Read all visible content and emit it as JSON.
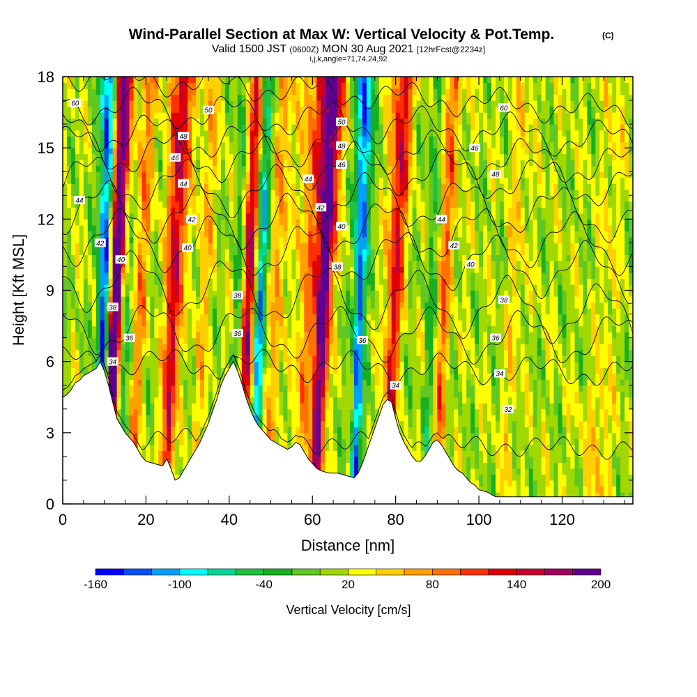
{
  "chart_data": {
    "type": "heatmap",
    "title": "Wind-Parallel Section at Max W: Vertical Velocity & Pot.Temp.",
    "title_mark": "(C)",
    "subtitle_parts": [
      "Valid 1500 JST ",
      "(0600Z)",
      " MON 30 Aug 2021 ",
      "[12hrFcst@2234z]"
    ],
    "subtitle2": "i,j,k,angle=71,74,24,92",
    "xlabel": "Distance [nm]",
    "ylabel": "Height [Kft MSL]",
    "xlim": [
      0,
      137
    ],
    "ylim": [
      0,
      18
    ],
    "x_ticks": [
      0,
      20,
      40,
      60,
      80,
      100,
      120
    ],
    "y_ticks": [
      0,
      3,
      6,
      9,
      12,
      15,
      18
    ],
    "colorbar": {
      "label": "Vertical Velocity [cm/s]",
      "tick_labels": [
        "-160",
        "-100",
        "-40",
        "20",
        "80",
        "140",
        "200"
      ],
      "tick_values": [
        -160,
        -100,
        -40,
        20,
        80,
        140,
        200
      ],
      "colors": [
        "#0000ff",
        "#0050ff",
        "#00a0ff",
        "#00ffff",
        "#00d896",
        "#20c040",
        "#18b020",
        "#60c820",
        "#a0d800",
        "#ffff00",
        "#ffd000",
        "#ffa000",
        "#ff7000",
        "#ff3000",
        "#e00000",
        "#c80030",
        "#a00060",
        "#600090"
      ]
    },
    "updrafts": [
      {
        "x": 12,
        "w": 220
      },
      {
        "x": 26,
        "w": 150
      },
      {
        "x": 44,
        "w": 140
      },
      {
        "x": 62,
        "w": 210
      },
      {
        "x": 58,
        "w": 80
      },
      {
        "x": 79,
        "w": 130
      },
      {
        "x": 91,
        "w": 70
      },
      {
        "x": 18,
        "w": 60
      },
      {
        "x": 33,
        "w": 40
      },
      {
        "x": 51,
        "w": 55
      },
      {
        "x": 108,
        "w": 30
      },
      {
        "x": 130,
        "w": 25
      }
    ],
    "downdrafts": [
      {
        "x": 9.5,
        "w": -170
      },
      {
        "x": 47,
        "w": -120
      },
      {
        "x": 71,
        "w": -150
      },
      {
        "x": 14.5,
        "w": -60
      },
      {
        "x": 42,
        "w": -50
      },
      {
        "x": 88,
        "w": -40
      }
    ],
    "terrain_kft": [
      [
        0,
        4.5
      ],
      [
        1,
        4.6
      ],
      [
        2,
        4.8
      ],
      [
        3,
        5.1
      ],
      [
        4,
        5.2
      ],
      [
        5,
        5.4
      ],
      [
        6,
        5.5
      ],
      [
        7,
        5.6
      ],
      [
        8,
        5.7
      ],
      [
        9,
        6.0
      ],
      [
        10,
        5.6
      ],
      [
        11,
        5.0
      ],
      [
        12,
        4.3
      ],
      [
        13,
        3.6
      ],
      [
        14,
        3.3
      ],
      [
        15,
        3.0
      ],
      [
        16,
        2.8
      ],
      [
        17,
        2.6
      ],
      [
        18,
        2.3
      ],
      [
        19,
        2.0
      ],
      [
        20,
        1.8
      ],
      [
        22,
        1.7
      ],
      [
        24,
        1.6
      ],
      [
        25,
        1.9
      ],
      [
        26,
        1.5
      ],
      [
        27,
        1.0
      ],
      [
        28,
        1.1
      ],
      [
        29,
        1.4
      ],
      [
        30,
        1.7
      ],
      [
        31,
        2.0
      ],
      [
        32,
        2.3
      ],
      [
        33,
        2.6
      ],
      [
        34,
        3.0
      ],
      [
        35,
        3.4
      ],
      [
        36,
        3.9
      ],
      [
        37,
        4.4
      ],
      [
        38,
        5.0
      ],
      [
        39,
        5.4
      ],
      [
        40,
        5.7
      ],
      [
        41,
        6.0
      ],
      [
        42,
        5.6
      ],
      [
        43,
        5.1
      ],
      [
        44,
        4.5
      ],
      [
        45,
        4.0
      ],
      [
        46,
        3.6
      ],
      [
        47,
        3.3
      ],
      [
        48,
        3.1
      ],
      [
        49,
        2.9
      ],
      [
        50,
        2.7
      ],
      [
        51,
        2.6
      ],
      [
        52,
        2.5
      ],
      [
        53,
        2.4
      ],
      [
        54,
        2.3
      ],
      [
        55,
        2.4
      ],
      [
        56,
        2.6
      ],
      [
        57,
        2.5
      ],
      [
        58,
        2.2
      ],
      [
        59,
        1.9
      ],
      [
        60,
        1.7
      ],
      [
        61,
        1.5
      ],
      [
        62,
        1.4
      ],
      [
        64,
        1.3
      ],
      [
        66,
        1.3
      ],
      [
        68,
        1.2
      ],
      [
        70,
        1.1
      ],
      [
        71,
        1.3
      ],
      [
        72,
        1.7
      ],
      [
        73,
        2.2
      ],
      [
        74,
        2.7
      ],
      [
        75,
        3.2
      ],
      [
        76,
        3.7
      ],
      [
        77,
        4.2
      ],
      [
        78,
        4.4
      ],
      [
        79,
        4.3
      ],
      [
        80,
        3.6
      ],
      [
        81,
        3.0
      ],
      [
        82,
        2.6
      ],
      [
        83,
        2.3
      ],
      [
        84,
        2.0
      ],
      [
        85,
        1.8
      ],
      [
        86,
        1.8
      ],
      [
        87,
        2.0
      ],
      [
        88,
        2.3
      ],
      [
        89,
        2.6
      ],
      [
        90,
        2.7
      ],
      [
        91,
        2.5
      ],
      [
        92,
        2.2
      ],
      [
        93,
        1.9
      ],
      [
        94,
        1.6
      ],
      [
        95,
        1.4
      ],
      [
        96,
        1.3
      ],
      [
        97,
        1.1
      ],
      [
        98,
        0.9
      ],
      [
        99,
        0.8
      ],
      [
        100,
        0.6
      ],
      [
        102,
        0.5
      ],
      [
        104,
        0.3
      ],
      [
        110,
        0.3
      ],
      [
        120,
        0.3
      ],
      [
        130,
        0.3
      ],
      [
        137,
        0.3
      ]
    ],
    "theta_contours": [
      {
        "label": "32",
        "base": 2.6,
        "amp": 0.2,
        "labels_at": [
          [
            107,
            4.0
          ]
        ]
      },
      {
        "label": "34",
        "base": 5.8,
        "amp": 0.4,
        "labels_at": [
          [
            12,
            6.0
          ],
          [
            80,
            5.0
          ],
          [
            105,
            5.5
          ]
        ]
      },
      {
        "label": "36",
        "base": 7.2,
        "amp": 0.9,
        "labels_at": [
          [
            16,
            7.0
          ],
          [
            42,
            7.2
          ],
          [
            72,
            6.9
          ],
          [
            104,
            7.0
          ]
        ]
      },
      {
        "label": "38",
        "base": 8.8,
        "amp": 1.1,
        "labels_at": [
          [
            12,
            8.3
          ],
          [
            42,
            8.8
          ],
          [
            66,
            10.0
          ],
          [
            106,
            8.6
          ]
        ]
      },
      {
        "label": "40",
        "base": 10.6,
        "amp": 1.0,
        "labels_at": [
          [
            14,
            10.3
          ],
          [
            30,
            10.8
          ],
          [
            67,
            11.7
          ],
          [
            98,
            10.1
          ]
        ]
      },
      {
        "label": "42",
        "base": 11.8,
        "amp": 1.0,
        "labels_at": [
          [
            9,
            11.0
          ],
          [
            31,
            12.0
          ],
          [
            62,
            12.5
          ],
          [
            94,
            10.9
          ]
        ]
      },
      {
        "label": "44",
        "base": 13.0,
        "amp": 0.9,
        "labels_at": [
          [
            4,
            12.8
          ],
          [
            29,
            13.5
          ],
          [
            59,
            13.7
          ],
          [
            91,
            12.0
          ]
        ]
      },
      {
        "label": "46",
        "base": 14.3,
        "amp": 0.8,
        "labels_at": [
          [
            27,
            14.6
          ],
          [
            67,
            14.3
          ],
          [
            99,
            15.0
          ]
        ]
      },
      {
        "label": "48",
        "base": 15.1,
        "amp": 0.7,
        "labels_at": [
          [
            29,
            15.5
          ],
          [
            67,
            15.1
          ],
          [
            104,
            13.9
          ]
        ]
      },
      {
        "label": "50",
        "base": 16.2,
        "amp": 0.6,
        "labels_at": [
          [
            35,
            16.6
          ],
          [
            67,
            16.1
          ]
        ]
      },
      {
        "label": "60",
        "base": 17.4,
        "amp": 0.4,
        "labels_at": [
          [
            3,
            16.9
          ],
          [
            106,
            16.7
          ]
        ]
      }
    ]
  }
}
